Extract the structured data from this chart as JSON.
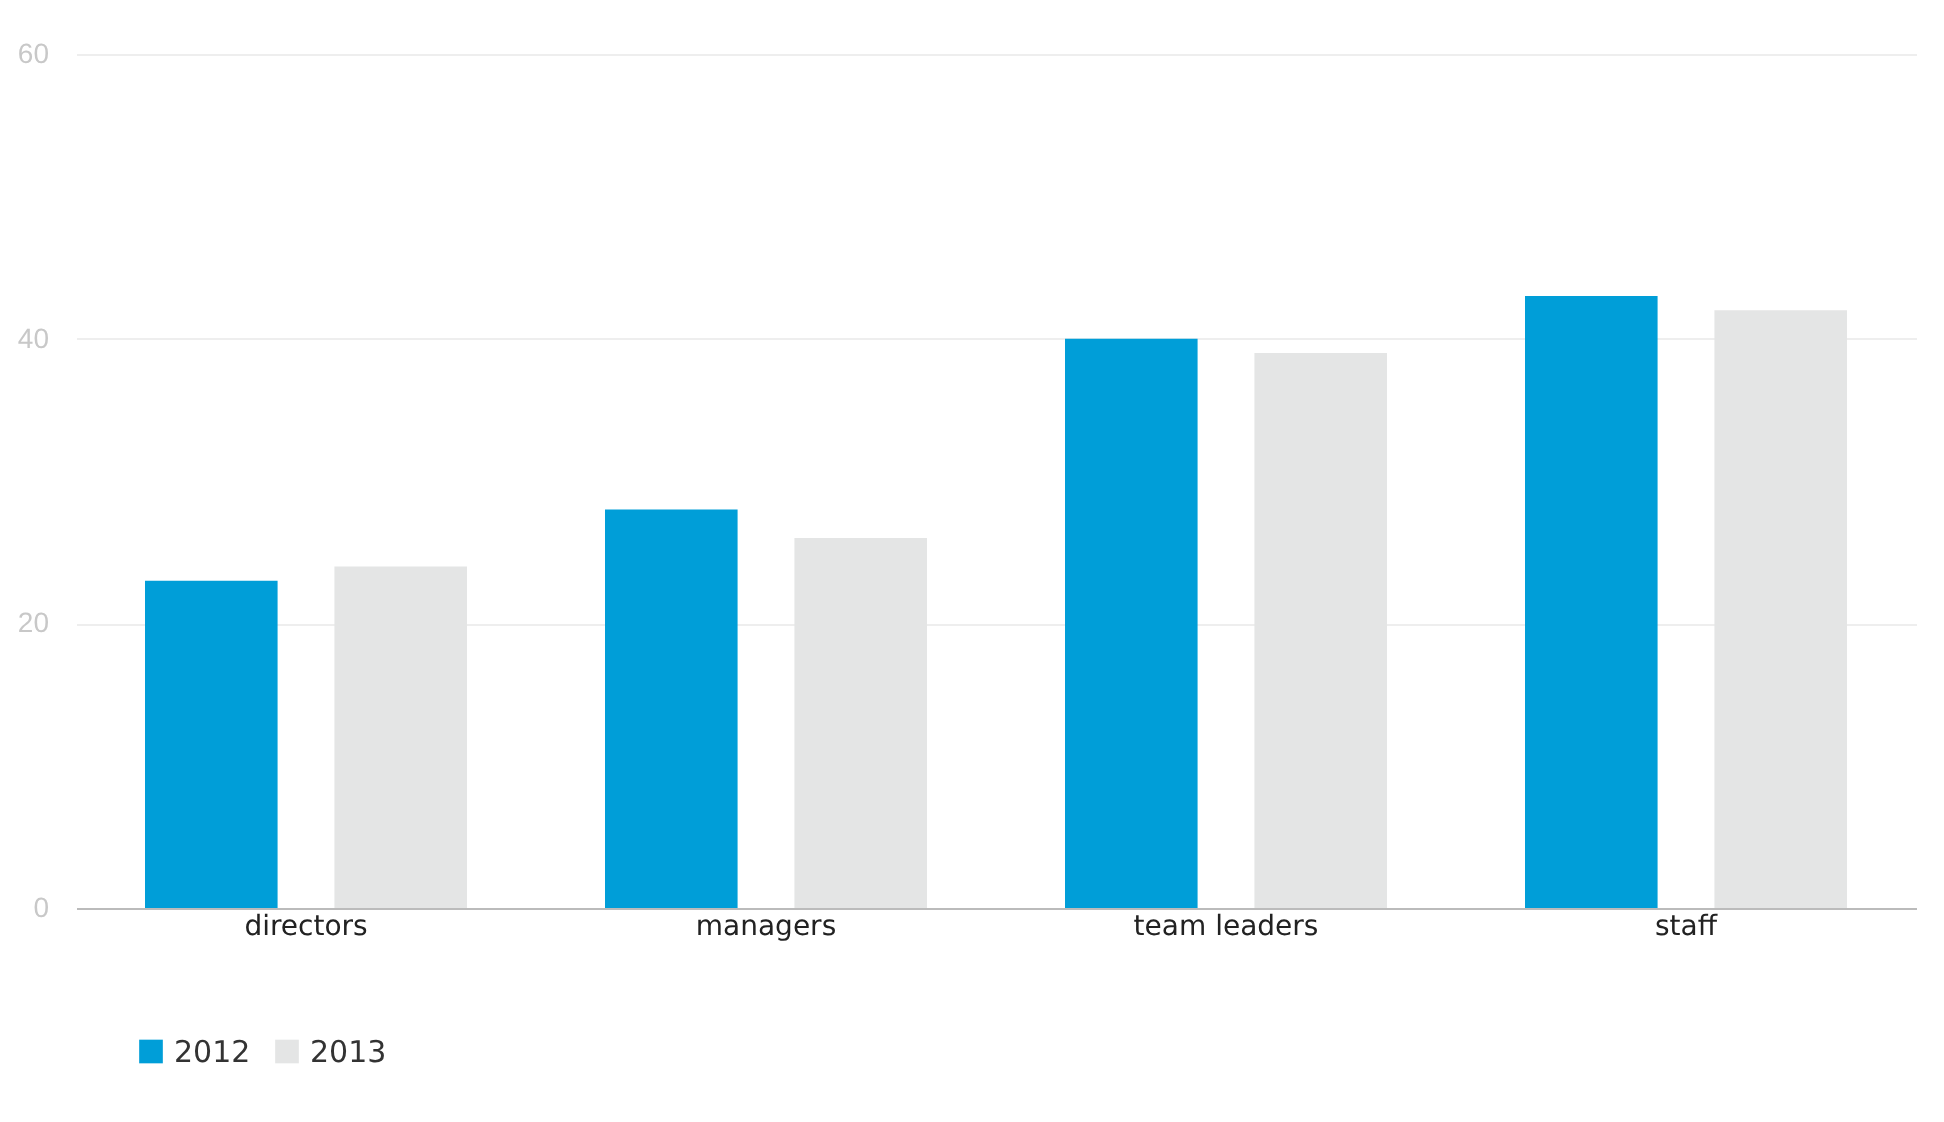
{
  "chart_data": {
    "type": "bar",
    "categories": [
      "directors",
      "managers",
      "team leaders",
      "staff"
    ],
    "series": [
      {
        "name": "2012",
        "color": "#009ed8",
        "values": [
          23,
          28,
          40,
          43
        ]
      },
      {
        "name": "2013",
        "color": "#e4e5e5",
        "values": [
          24,
          26,
          39,
          42
        ]
      }
    ],
    "ylim": [
      0,
      60
    ],
    "yticks": [
      0,
      20,
      40,
      60
    ],
    "grid": "y",
    "legend": "bottom"
  }
}
